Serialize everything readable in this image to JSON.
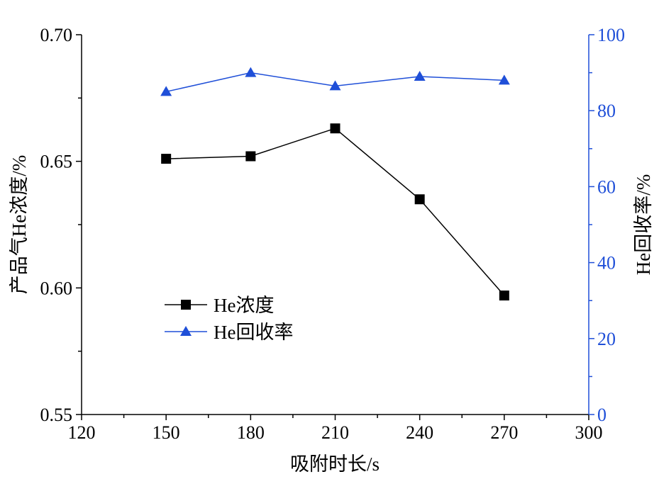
{
  "chart_data": {
    "type": "line",
    "x": [
      150,
      180,
      210,
      240,
      270
    ],
    "xlabel": "吸附时长/s",
    "xlim": [
      120,
      300
    ],
    "xticks": [
      120,
      150,
      180,
      210,
      240,
      270,
      300
    ],
    "ylabel_left": "产品气He浓度/%",
    "ylim_left": [
      0.55,
      0.7
    ],
    "yticks_left": [
      "0.55",
      "0.60",
      "0.65",
      "0.70"
    ],
    "ylabel_right": "He回收率/%",
    "ylim_right": [
      0,
      100
    ],
    "yticks_right": [
      "0",
      "20",
      "40",
      "60",
      "80",
      "100"
    ],
    "grid": false,
    "legend_position": "lower-left",
    "series": [
      {
        "name": "He浓度",
        "axis": "left",
        "marker": "square",
        "color": "#000000",
        "values": [
          0.651,
          0.652,
          0.663,
          0.635,
          0.597
        ]
      },
      {
        "name": "He回收率",
        "axis": "right",
        "marker": "triangle",
        "color": "#1f4fd8",
        "values": [
          85,
          90,
          86.5,
          89,
          88
        ]
      }
    ]
  }
}
